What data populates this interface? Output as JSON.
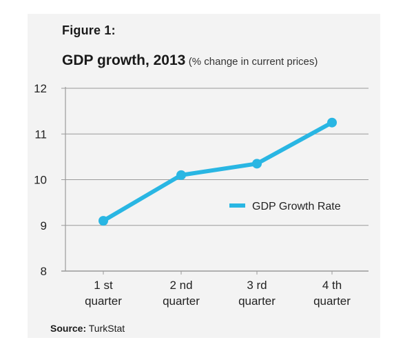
{
  "figure_label": "Figure 1:",
  "title": "GDP growth, 2013",
  "subtitle": "(% change in current prices)",
  "source": {
    "label": "Source:",
    "value": "TurkStat"
  },
  "colors": {
    "series": "#29b6e3",
    "grid": "#9a9a9a",
    "panel": "#f3f3f3"
  },
  "chart_data": {
    "type": "line",
    "title": "GDP growth, 2013",
    "subtitle": "(% change in current prices)",
    "categories": [
      [
        "1 st",
        "quarter"
      ],
      [
        "2 nd",
        "quarter"
      ],
      [
        "3 rd",
        "quarter"
      ],
      [
        "4 th",
        "quarter"
      ]
    ],
    "series": [
      {
        "name": "GDP Growth Rate",
        "values": [
          9.1,
          10.1,
          10.35,
          11.25
        ]
      }
    ],
    "ylim": [
      8,
      12
    ],
    "yticks": [
      8,
      9,
      10,
      11,
      12
    ],
    "grid": true,
    "legend_position": "right"
  }
}
